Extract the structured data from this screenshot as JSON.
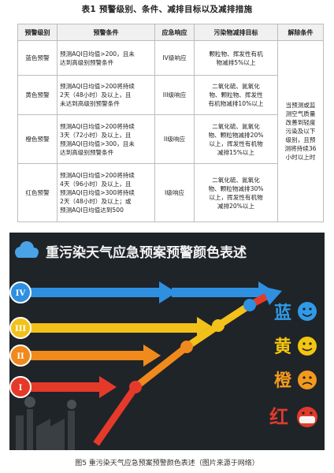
{
  "table": {
    "title": "表1 预警级别、条件、减排目标以及减排措施",
    "headers": [
      "预警级别",
      "预警条件",
      "应急响应",
      "污染物减排目标",
      "解除条件"
    ],
    "rows": [
      {
        "level": "蓝色预警",
        "condition": [
          "预测AQI日均值>200，且未",
          "达到高级别预警条件"
        ],
        "response": "IV级响应",
        "target": [
          "颗粒物、挥发性有机",
          "物减排5%以上"
        ]
      },
      {
        "level": "黄色预警",
        "condition": [
          "预测AQI日均值>200将持续",
          "2天（48小时）及以上，且",
          "未达到高级别预警条件"
        ],
        "response": "III级响应",
        "target": [
          "二氧化硫、氮氧化",
          "物、颗粒物、挥发性",
          "有机物减排10%以上"
        ]
      },
      {
        "level": "橙色预警",
        "condition": [
          "预测AQI日均值>200将持续",
          "3天（72小时）及以上，且",
          "预测AQI日均值>300，且未",
          "达到高级别预警条件"
        ],
        "response": "II级响应",
        "target": [
          "二氧化硫、氮氧化",
          "物、颗粒物减排20%",
          "以上，挥发性有机物",
          "减排15%以上"
        ]
      },
      {
        "level": "红色预警",
        "condition": [
          "预测AQI日均值>200将持续",
          "4天（96小时）及以上，且",
          "预测AQI日均值>300将持续",
          "2天（48小时）及以上；或",
          "预测AQI日均值达到500"
        ],
        "response": "I级响应",
        "target": [
          "二氧化硫、氮氧化",
          "物、颗粒物减排30%",
          "以上，挥发性有机物",
          "减排20%以上"
        ]
      }
    ],
    "release_condition": [
      "当预测或监",
      "测空气质量",
      "改善到轻度",
      "污染及以下",
      "级别，且预",
      "测将持续36",
      "小时以上时"
    ]
  },
  "figure": {
    "title": "重污染天气应急预案预警颜色表述",
    "levels": [
      {
        "numeral": "IV",
        "color": "#2f8fe0",
        "label": "蓝",
        "label_color": "#2f9be8"
      },
      {
        "numeral": "III",
        "color": "#f2c21a",
        "label": "黄",
        "label_color": "#f4c60f"
      },
      {
        "numeral": "II",
        "color": "#f08a1c",
        "label": "橙",
        "label_color": "#f39a1c"
      },
      {
        "numeral": "I",
        "color": "#e53a2a",
        "label": "红",
        "label_color": "#e23a2a"
      }
    ],
    "colors": {
      "background": "#1f2429",
      "title_text": "#f2f2f2",
      "cloud": "#4aa3e6"
    },
    "caption": "图5 重污染天气应急预案预警颜色表述（图片来源于网络）"
  }
}
